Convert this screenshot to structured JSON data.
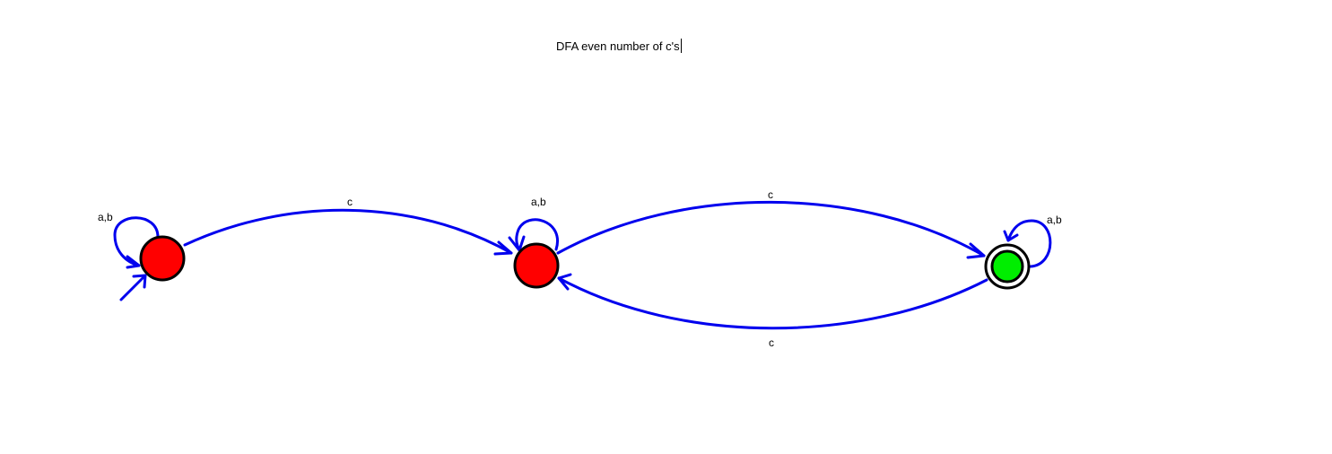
{
  "title": "DFA even number of c's",
  "colors": {
    "edge": "#0000ee",
    "non_accepting_state": "#ff0000",
    "accepting_state": "#00ee00",
    "state_border": "#000000",
    "background": "#ffffff"
  },
  "states": [
    {
      "id": "q0",
      "role": "start",
      "accepting": false
    },
    {
      "id": "q1",
      "role": "middle",
      "accepting": false
    },
    {
      "id": "q2",
      "role": "final",
      "accepting": true
    }
  ],
  "transitions": [
    {
      "id": "self-q0",
      "from": "q0",
      "to": "q0",
      "label": "a,b"
    },
    {
      "id": "q0-q1",
      "from": "q0",
      "to": "q1",
      "label": "c"
    },
    {
      "id": "self-q1",
      "from": "q1",
      "to": "q1",
      "label": "a,b"
    },
    {
      "id": "q1-q2",
      "from": "q1",
      "to": "q2",
      "label": "c"
    },
    {
      "id": "q2-q1",
      "from": "q2",
      "to": "q1",
      "label": "c"
    },
    {
      "id": "self-q2",
      "from": "q2",
      "to": "q2",
      "label": "a,b"
    }
  ]
}
